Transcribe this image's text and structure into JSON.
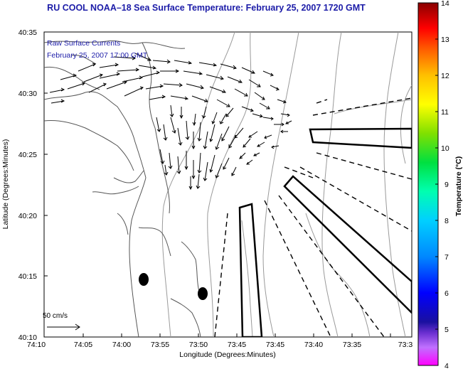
{
  "title": "RU COOL  NOAA–18  Sea Surface Temperature:  February 25, 2007 1720 GMT",
  "legend": {
    "line1": "Raw Surface Currents",
    "line2": "February 25, 2007 17:00 GMT",
    "color": "#1c1ca8"
  },
  "axes": {
    "xlabel": "Longitude (Degrees:Minutes)",
    "ylabel": "Latitude (Degrees:Minutes)",
    "xticks": [
      "74:10",
      "74:05",
      "74:00",
      "73:55",
      "73:50",
      "73:45",
      "73:40",
      "73:35",
      "73:3"
    ],
    "yticks": [
      "40:35",
      "40:30",
      "40:25",
      "40:20",
      "40:15",
      "40:10"
    ]
  },
  "scale_label": "50 cm/s",
  "colorbar": {
    "label": "Temperature (°C)",
    "ticks": [
      "14",
      "13",
      "12",
      "11",
      "10",
      "9",
      "8",
      "7",
      "6",
      "5",
      "4"
    ],
    "range": [
      4,
      14
    ]
  },
  "chart_data": {
    "type": "map",
    "x_range": [
      "74:10",
      "73:30"
    ],
    "y_range": [
      "40:10",
      "40:35"
    ],
    "colorbar_range_c": [
      4,
      14
    ]
  }
}
